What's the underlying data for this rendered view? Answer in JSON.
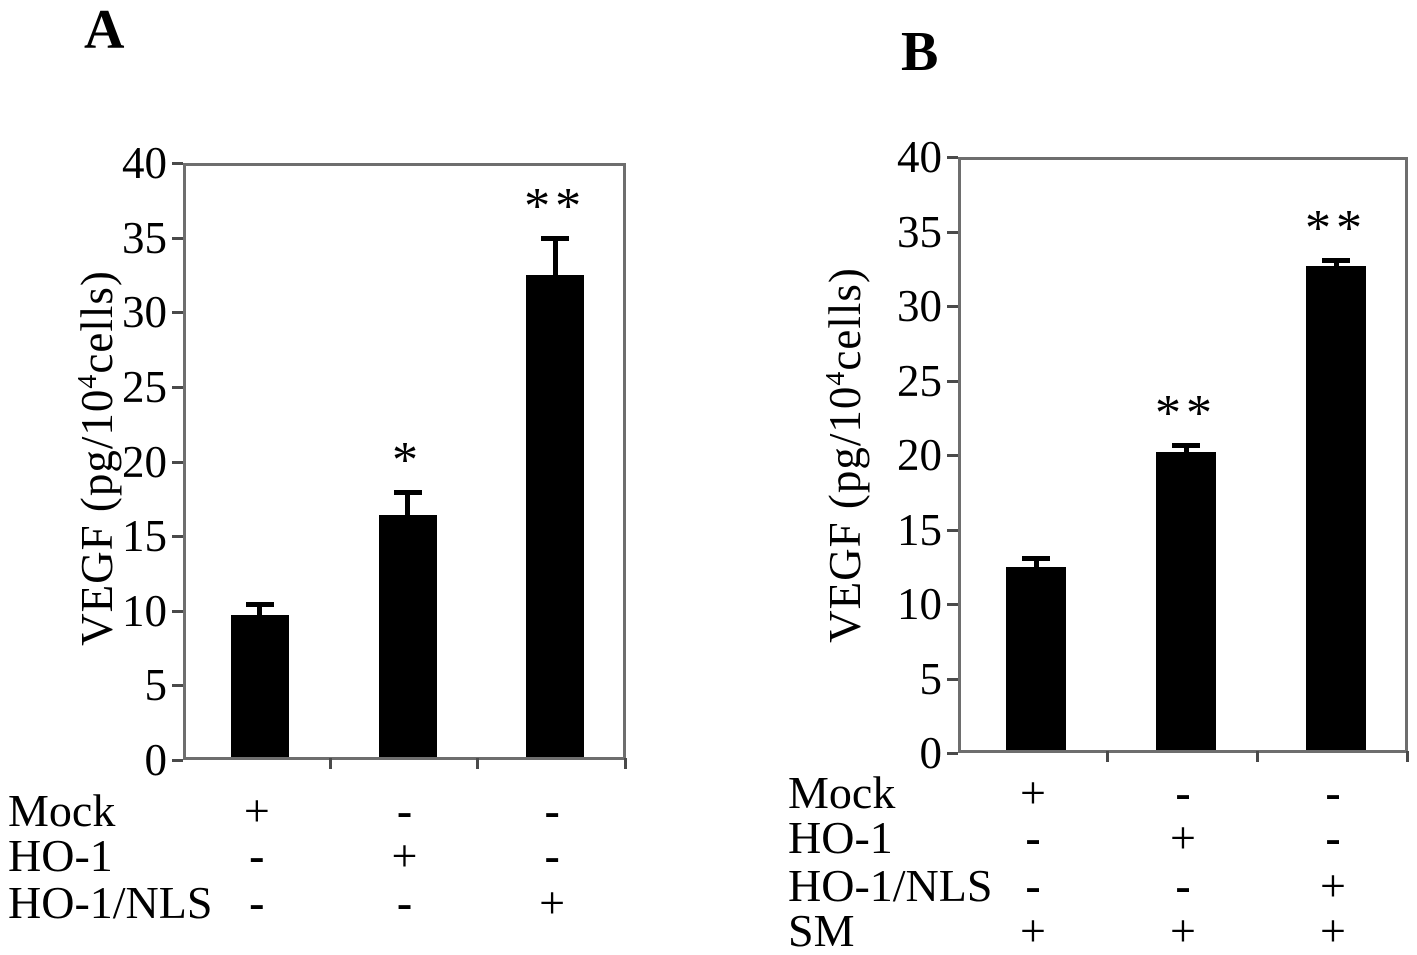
{
  "figure": {
    "panels": [
      {
        "letter": "A",
        "ylabel_prefix": "VEGF (pg/10",
        "ylabel_sup": "4",
        "ylabel_suffix": "cells)"
      },
      {
        "letter": "B",
        "ylabel_prefix": "VEGF (pg/10",
        "ylabel_sup": "4",
        "ylabel_suffix": "cells)"
      }
    ]
  },
  "chart_data": [
    {
      "type": "bar",
      "panel": "A",
      "title": "",
      "xlabel": "",
      "ylabel": "VEGF (pg/10^4 cells)",
      "ylim": [
        0,
        40
      ],
      "yticks": [
        0,
        5,
        10,
        15,
        20,
        25,
        30,
        35,
        40
      ],
      "grid": false,
      "legend": false,
      "bar_color": "#000000",
      "categories": [
        "Mock",
        "HO-1",
        "HO-1/NLS"
      ],
      "values": [
        9.5,
        16.2,
        32.3
      ],
      "errors": [
        0.7,
        1.5,
        2.4
      ],
      "significance": [
        "",
        "*",
        "**"
      ],
      "condition_rows": [
        {
          "label": "Mock",
          "symbols": [
            "+",
            "-",
            "-"
          ]
        },
        {
          "label": "HO-1",
          "symbols": [
            "-",
            "+",
            "-"
          ]
        },
        {
          "label": "HO-1/NLS",
          "symbols": [
            "-",
            "-",
            "+"
          ]
        }
      ]
    },
    {
      "type": "bar",
      "panel": "B",
      "title": "",
      "xlabel": "",
      "ylabel": "VEGF (pg/10^4 cells)",
      "ylim": [
        0,
        40
      ],
      "yticks": [
        0,
        5,
        10,
        15,
        20,
        25,
        30,
        35,
        40
      ],
      "grid": false,
      "legend": false,
      "bar_color": "#000000",
      "categories": [
        "Mock + SM",
        "HO-1 + SM",
        "HO-1/NLS + SM"
      ],
      "values": [
        12.3,
        20.0,
        32.5
      ],
      "errors": [
        0.5,
        0.4,
        0.3
      ],
      "significance": [
        "",
        "**",
        "**"
      ],
      "condition_rows": [
        {
          "label": "Mock",
          "symbols": [
            "+",
            "-",
            "-"
          ]
        },
        {
          "label": "HO-1",
          "symbols": [
            "-",
            "+",
            "-"
          ]
        },
        {
          "label": "HO-1/NLS",
          "symbols": [
            "-",
            "-",
            "+"
          ]
        },
        {
          "label": "SM",
          "symbols": [
            "+",
            "+",
            "+"
          ]
        }
      ]
    }
  ]
}
